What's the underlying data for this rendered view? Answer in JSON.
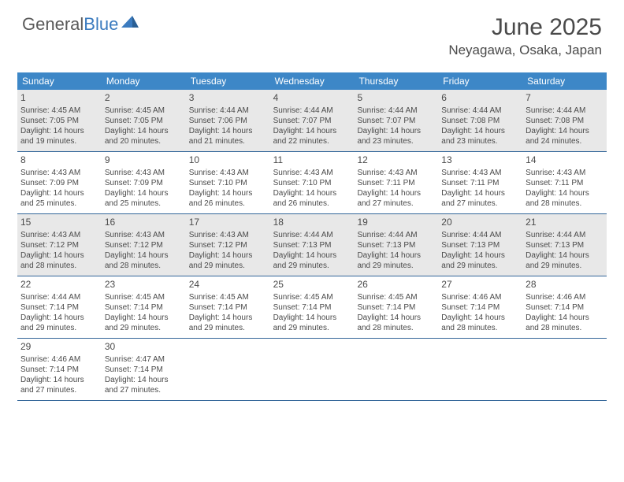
{
  "brand": {
    "part1": "General",
    "part2": "Blue"
  },
  "title": "June 2025",
  "location": "Neyagawa, Osaka, Japan",
  "colors": {
    "header_bg": "#3d87c7",
    "border": "#336699",
    "shade": "#e8e8e8",
    "text": "#4a4a4a",
    "brand_blue": "#3b7bbf"
  },
  "dow": [
    "Sunday",
    "Monday",
    "Tuesday",
    "Wednesday",
    "Thursday",
    "Friday",
    "Saturday"
  ],
  "weeks": [
    [
      {
        "n": "1",
        "shade": true,
        "sr": "Sunrise: 4:45 AM",
        "ss": "Sunset: 7:05 PM",
        "d1": "Daylight: 14 hours",
        "d2": "and 19 minutes."
      },
      {
        "n": "2",
        "shade": true,
        "sr": "Sunrise: 4:45 AM",
        "ss": "Sunset: 7:05 PM",
        "d1": "Daylight: 14 hours",
        "d2": "and 20 minutes."
      },
      {
        "n": "3",
        "shade": true,
        "sr": "Sunrise: 4:44 AM",
        "ss": "Sunset: 7:06 PM",
        "d1": "Daylight: 14 hours",
        "d2": "and 21 minutes."
      },
      {
        "n": "4",
        "shade": true,
        "sr": "Sunrise: 4:44 AM",
        "ss": "Sunset: 7:07 PM",
        "d1": "Daylight: 14 hours",
        "d2": "and 22 minutes."
      },
      {
        "n": "5",
        "shade": true,
        "sr": "Sunrise: 4:44 AM",
        "ss": "Sunset: 7:07 PM",
        "d1": "Daylight: 14 hours",
        "d2": "and 23 minutes."
      },
      {
        "n": "6",
        "shade": true,
        "sr": "Sunrise: 4:44 AM",
        "ss": "Sunset: 7:08 PM",
        "d1": "Daylight: 14 hours",
        "d2": "and 23 minutes."
      },
      {
        "n": "7",
        "shade": true,
        "sr": "Sunrise: 4:44 AM",
        "ss": "Sunset: 7:08 PM",
        "d1": "Daylight: 14 hours",
        "d2": "and 24 minutes."
      }
    ],
    [
      {
        "n": "8",
        "sr": "Sunrise: 4:43 AM",
        "ss": "Sunset: 7:09 PM",
        "d1": "Daylight: 14 hours",
        "d2": "and 25 minutes."
      },
      {
        "n": "9",
        "sr": "Sunrise: 4:43 AM",
        "ss": "Sunset: 7:09 PM",
        "d1": "Daylight: 14 hours",
        "d2": "and 25 minutes."
      },
      {
        "n": "10",
        "sr": "Sunrise: 4:43 AM",
        "ss": "Sunset: 7:10 PM",
        "d1": "Daylight: 14 hours",
        "d2": "and 26 minutes."
      },
      {
        "n": "11",
        "sr": "Sunrise: 4:43 AM",
        "ss": "Sunset: 7:10 PM",
        "d1": "Daylight: 14 hours",
        "d2": "and 26 minutes."
      },
      {
        "n": "12",
        "sr": "Sunrise: 4:43 AM",
        "ss": "Sunset: 7:11 PM",
        "d1": "Daylight: 14 hours",
        "d2": "and 27 minutes."
      },
      {
        "n": "13",
        "sr": "Sunrise: 4:43 AM",
        "ss": "Sunset: 7:11 PM",
        "d1": "Daylight: 14 hours",
        "d2": "and 27 minutes."
      },
      {
        "n": "14",
        "sr": "Sunrise: 4:43 AM",
        "ss": "Sunset: 7:11 PM",
        "d1": "Daylight: 14 hours",
        "d2": "and 28 minutes."
      }
    ],
    [
      {
        "n": "15",
        "shade": true,
        "sr": "Sunrise: 4:43 AM",
        "ss": "Sunset: 7:12 PM",
        "d1": "Daylight: 14 hours",
        "d2": "and 28 minutes."
      },
      {
        "n": "16",
        "shade": true,
        "sr": "Sunrise: 4:43 AM",
        "ss": "Sunset: 7:12 PM",
        "d1": "Daylight: 14 hours",
        "d2": "and 28 minutes."
      },
      {
        "n": "17",
        "shade": true,
        "sr": "Sunrise: 4:43 AM",
        "ss": "Sunset: 7:12 PM",
        "d1": "Daylight: 14 hours",
        "d2": "and 29 minutes."
      },
      {
        "n": "18",
        "shade": true,
        "sr": "Sunrise: 4:44 AM",
        "ss": "Sunset: 7:13 PM",
        "d1": "Daylight: 14 hours",
        "d2": "and 29 minutes."
      },
      {
        "n": "19",
        "shade": true,
        "sr": "Sunrise: 4:44 AM",
        "ss": "Sunset: 7:13 PM",
        "d1": "Daylight: 14 hours",
        "d2": "and 29 minutes."
      },
      {
        "n": "20",
        "shade": true,
        "sr": "Sunrise: 4:44 AM",
        "ss": "Sunset: 7:13 PM",
        "d1": "Daylight: 14 hours",
        "d2": "and 29 minutes."
      },
      {
        "n": "21",
        "shade": true,
        "sr": "Sunrise: 4:44 AM",
        "ss": "Sunset: 7:13 PM",
        "d1": "Daylight: 14 hours",
        "d2": "and 29 minutes."
      }
    ],
    [
      {
        "n": "22",
        "sr": "Sunrise: 4:44 AM",
        "ss": "Sunset: 7:14 PM",
        "d1": "Daylight: 14 hours",
        "d2": "and 29 minutes."
      },
      {
        "n": "23",
        "sr": "Sunrise: 4:45 AM",
        "ss": "Sunset: 7:14 PM",
        "d1": "Daylight: 14 hours",
        "d2": "and 29 minutes."
      },
      {
        "n": "24",
        "sr": "Sunrise: 4:45 AM",
        "ss": "Sunset: 7:14 PM",
        "d1": "Daylight: 14 hours",
        "d2": "and 29 minutes."
      },
      {
        "n": "25",
        "sr": "Sunrise: 4:45 AM",
        "ss": "Sunset: 7:14 PM",
        "d1": "Daylight: 14 hours",
        "d2": "and 29 minutes."
      },
      {
        "n": "26",
        "sr": "Sunrise: 4:45 AM",
        "ss": "Sunset: 7:14 PM",
        "d1": "Daylight: 14 hours",
        "d2": "and 28 minutes."
      },
      {
        "n": "27",
        "sr": "Sunrise: 4:46 AM",
        "ss": "Sunset: 7:14 PM",
        "d1": "Daylight: 14 hours",
        "d2": "and 28 minutes."
      },
      {
        "n": "28",
        "sr": "Sunrise: 4:46 AM",
        "ss": "Sunset: 7:14 PM",
        "d1": "Daylight: 14 hours",
        "d2": "and 28 minutes."
      }
    ],
    [
      {
        "n": "29",
        "sr": "Sunrise: 4:46 AM",
        "ss": "Sunset: 7:14 PM",
        "d1": "Daylight: 14 hours",
        "d2": "and 27 minutes."
      },
      {
        "n": "30",
        "sr": "Sunrise: 4:47 AM",
        "ss": "Sunset: 7:14 PM",
        "d1": "Daylight: 14 hours",
        "d2": "and 27 minutes."
      },
      {
        "empty": true
      },
      {
        "empty": true
      },
      {
        "empty": true
      },
      {
        "empty": true
      },
      {
        "empty": true
      }
    ]
  ]
}
